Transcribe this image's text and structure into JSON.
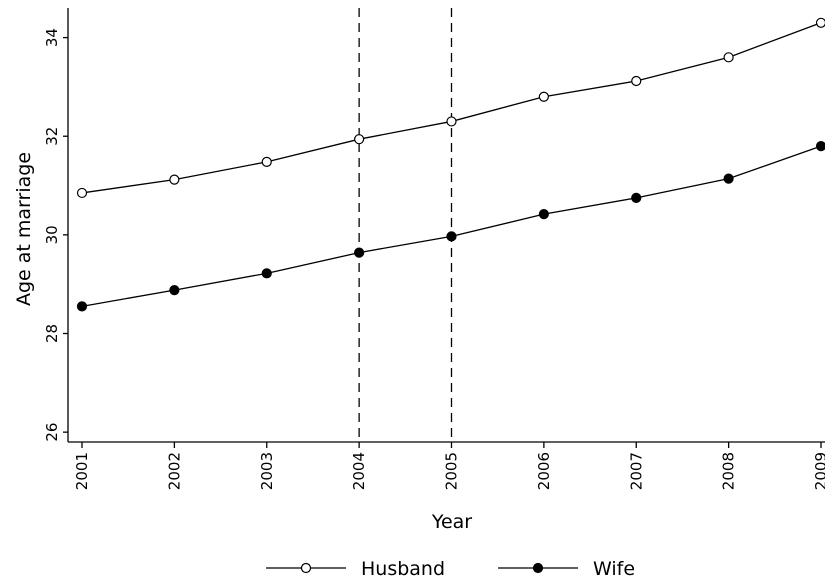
{
  "chart_data": {
    "type": "line",
    "xlabel": "Year",
    "ylabel": "Age at marriage",
    "x": [
      2001,
      2002,
      2003,
      2004,
      2005,
      2006,
      2007,
      2008,
      2009
    ],
    "x_tick_labels": [
      "2001",
      "2002",
      "2003",
      "2004",
      "2005",
      "2006",
      "2007",
      "2008",
      "2009"
    ],
    "ylim": [
      25.8,
      34.6
    ],
    "y_ticks": [
      26,
      28,
      30,
      32,
      34
    ],
    "y_tick_labels": [
      "26",
      "28",
      "30",
      "32",
      "34"
    ],
    "grid": false,
    "legend_position": "bottom",
    "reference_lines_x": [
      2004,
      2005
    ],
    "series": [
      {
        "name": "Husband",
        "marker": "hollow-circle",
        "color": "#000000",
        "values": [
          30.85,
          31.12,
          31.48,
          31.94,
          32.3,
          32.8,
          33.12,
          33.6,
          34.3
        ]
      },
      {
        "name": "Wife",
        "marker": "filled-circle",
        "color": "#000000",
        "values": [
          28.55,
          28.88,
          29.22,
          29.64,
          29.97,
          30.42,
          30.75,
          31.14,
          31.8
        ]
      }
    ]
  }
}
